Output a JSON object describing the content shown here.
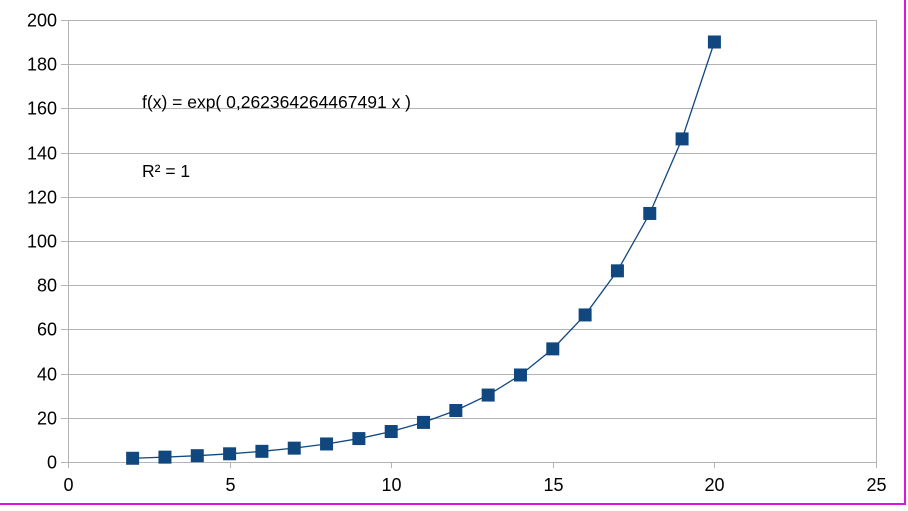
{
  "chart_data": {
    "type": "scatter",
    "title": "",
    "xlabel": "",
    "ylabel": "",
    "legend": "none",
    "grid": "horizontal",
    "marker": "square",
    "annotation": {
      "line1": "f(x) = exp( 0,262364264467491 x )",
      "line2": "R² = 1"
    },
    "x": [
      2,
      3,
      4,
      5,
      6,
      7,
      8,
      9,
      10,
      11,
      12,
      13,
      14,
      15,
      16,
      17,
      18,
      19,
      20
    ],
    "y": [
      1.69,
      2.2,
      2.86,
      3.71,
      4.83,
      6.27,
      8.16,
      10.6,
      13.79,
      17.92,
      23.3,
      30.29,
      39.37,
      51.19,
      66.54,
      86.5,
      112.46,
      146.19,
      190.05
    ],
    "xlim": [
      0,
      25
    ],
    "ylim": [
      0,
      200
    ],
    "x_ticks": [
      0,
      5,
      10,
      15,
      20,
      25
    ],
    "y_ticks": [
      0,
      20,
      40,
      60,
      80,
      100,
      120,
      140,
      160,
      180,
      200
    ],
    "colors": {
      "series": "#11477f",
      "grid": "#b3b3b3",
      "axis_text": "#000000",
      "background": "#ffffff",
      "frame_border": "#dd16dd"
    }
  }
}
